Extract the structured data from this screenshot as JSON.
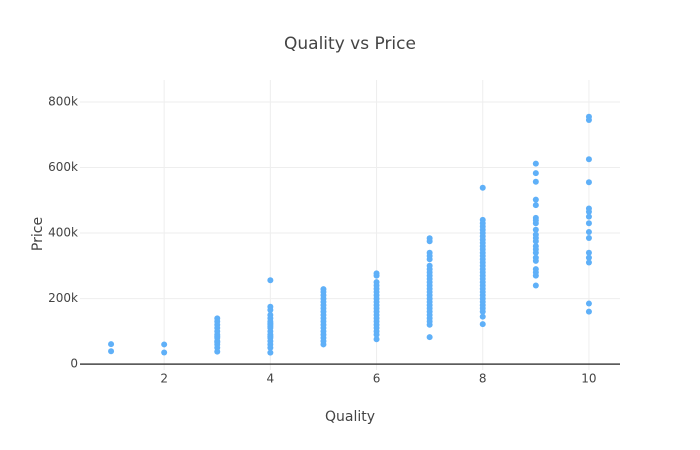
{
  "chart_data": {
    "type": "scatter",
    "title": "Quality vs Price",
    "x_label": "Quality",
    "y_label": "Price",
    "series": [
      {
        "color": "#5fb0f8",
        "x": [
          1,
          1,
          2,
          2,
          3,
          3,
          3,
          3,
          3,
          3,
          3,
          3,
          3,
          3,
          3,
          3,
          3,
          4,
          4,
          4,
          4,
          4,
          4,
          4,
          4,
          4,
          4,
          4,
          4,
          4,
          4,
          4,
          4,
          4,
          4,
          5,
          5,
          5,
          5,
          5,
          5,
          5,
          5,
          5,
          5,
          5,
          5,
          5,
          5,
          5,
          5,
          5,
          5,
          6,
          6,
          6,
          6,
          6,
          6,
          6,
          6,
          6,
          6,
          6,
          6,
          6,
          6,
          6,
          6,
          6,
          6,
          6,
          6,
          7,
          7,
          7,
          7,
          7,
          7,
          7,
          7,
          7,
          7,
          7,
          7,
          7,
          7,
          7,
          7,
          7,
          7,
          7,
          7,
          7,
          7,
          7,
          7,
          7,
          8,
          8,
          8,
          8,
          8,
          8,
          8,
          8,
          8,
          8,
          8,
          8,
          8,
          8,
          8,
          8,
          8,
          8,
          8,
          8,
          8,
          8,
          8,
          8,
          8,
          8,
          8,
          8,
          8,
          8,
          8,
          8,
          9,
          9,
          9,
          9,
          9,
          9,
          9,
          9,
          9,
          9,
          9,
          9,
          9,
          9,
          9,
          9,
          9,
          9,
          9,
          9,
          9,
          10,
          10,
          10,
          10,
          10,
          10,
          10,
          10,
          10,
          10,
          10,
          10,
          10,
          10,
          10
        ],
        "values": [
          61000,
          39300,
          60000,
          35311,
          139600,
          130000,
          120000,
          110000,
          100000,
          90000,
          80000,
          70000,
          60000,
          50000,
          37900,
          85000,
          67000,
          256000,
          175000,
          165000,
          150000,
          140000,
          130000,
          125000,
          120000,
          115000,
          110000,
          100000,
          90000,
          85000,
          80000,
          70000,
          60000,
          50000,
          34900,
          228950,
          220000,
          210000,
          200000,
          190000,
          180000,
          170000,
          160000,
          150000,
          140000,
          130000,
          120000,
          110000,
          100000,
          90000,
          80000,
          70000,
          60000,
          277000,
          270000,
          250000,
          240000,
          230000,
          220000,
          210000,
          200000,
          190000,
          180000,
          170000,
          160000,
          150000,
          140000,
          130000,
          120000,
          110000,
          100000,
          90000,
          76000,
          383970,
          375000,
          340000,
          330000,
          320000,
          300000,
          290000,
          280000,
          270000,
          260000,
          250000,
          240000,
          230000,
          220000,
          210000,
          200000,
          190000,
          180000,
          170000,
          160000,
          150000,
          140000,
          130000,
          120000,
          82500,
          538000,
          440000,
          430000,
          420000,
          410000,
          400000,
          390000,
          380000,
          370000,
          360000,
          350000,
          340000,
          330000,
          320000,
          310000,
          300000,
          290000,
          280000,
          270000,
          260000,
          250000,
          240000,
          230000,
          220000,
          210000,
          200000,
          190000,
          180000,
          170000,
          160000,
          145000,
          122000,
          611657,
          582933,
          556581,
          501837,
          485000,
          446261,
          438780,
          430000,
          410000,
          395000,
          385000,
          375000,
          360000,
          350000,
          340000,
          325000,
          315000,
          290000,
          280000,
          270000,
          240000,
          755000,
          745000,
          625000,
          555000,
          475000,
          465000,
          450000,
          430000,
          403000,
          385000,
          340000,
          325000,
          310000,
          184750,
          160000
        ]
      }
    ],
    "xlim": [
      0.415,
      10.585
    ],
    "ylim": [
      -18000,
      867000
    ],
    "xticks": [
      2,
      4,
      6,
      8,
      10
    ],
    "yticks": [
      {
        "value": 0,
        "label": "0"
      },
      {
        "value": 200000,
        "label": "200k"
      },
      {
        "value": 400000,
        "label": "400k"
      },
      {
        "value": 600000,
        "label": "600k"
      },
      {
        "value": 800000,
        "label": "800k"
      }
    ],
    "grid": true
  }
}
